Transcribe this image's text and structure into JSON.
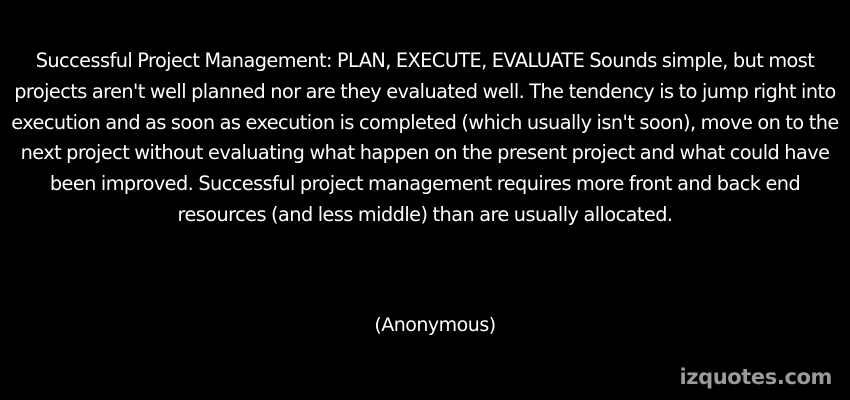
{
  "quote": {
    "text": "Successful Project Management: PLAN, EXECUTE, EVALUATE Sounds simple, but most projects aren't well planned nor are they evaluated well. The tendency is to jump right into execution and as soon as execution is completed (which usually isn't soon), move on to the next project without evaluating what happen on the present project and what could have been improved. Successful project management requires more front and back end resources (and less middle) than are usually allocated.",
    "author": "(Anonymous)"
  },
  "watermark": {
    "text": "izquotes.com"
  },
  "colors": {
    "background": "#000000",
    "text": "#ffffff",
    "watermark": "#9a9a9a"
  }
}
